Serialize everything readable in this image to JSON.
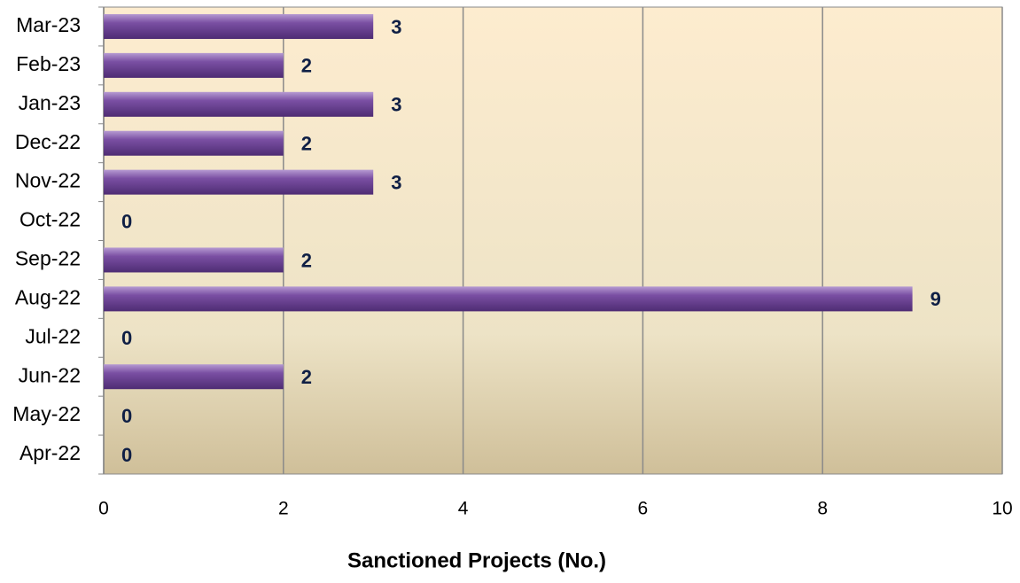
{
  "chart_data": {
    "type": "bar",
    "orientation": "horizontal",
    "xlabel": "Sanctioned Projects (No.)",
    "categories": [
      "Apr-22",
      "May-22",
      "Jun-22",
      "Jul-22",
      "Aug-22",
      "Sep-22",
      "Oct-22",
      "Nov-22",
      "Dec-22",
      "Jan-23",
      "Feb-23",
      "Mar-23"
    ],
    "values": [
      0,
      0,
      2,
      0,
      9,
      2,
      0,
      3,
      2,
      3,
      2,
      3
    ],
    "color": "#7a4fa3",
    "xlim": [
      0,
      10
    ],
    "xticks": [
      0,
      2,
      4,
      6,
      8,
      10
    ],
    "grid": true
  }
}
